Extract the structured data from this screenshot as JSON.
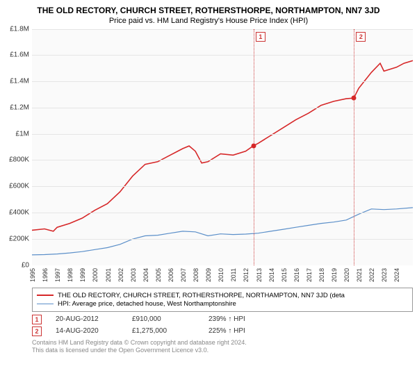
{
  "header": {
    "title": "THE OLD RECTORY, CHURCH STREET, ROTHERSTHORPE, NORTHAMPTON, NN7 3JD",
    "subtitle": "Price paid vs. HM Land Registry's House Price Index (HPI)"
  },
  "chart": {
    "type": "line",
    "background_color": "#fafafa",
    "grid_color": "#e5e5e5",
    "text_color": "#333333",
    "font_family": "Arial",
    "label_fontsize": 10,
    "x": {
      "min": 1995.0,
      "max": 2025.3,
      "ticks": [
        "1995",
        "1996",
        "1997",
        "1998",
        "1999",
        "2000",
        "2001",
        "2002",
        "2003",
        "2004",
        "2005",
        "2006",
        "2007",
        "2008",
        "2009",
        "2010",
        "2011",
        "2012",
        "2013",
        "2014",
        "2015",
        "2016",
        "2017",
        "2018",
        "2019",
        "2020",
        "2021",
        "2022",
        "2023",
        "2024"
      ],
      "label_rotate_deg": -90
    },
    "y": {
      "min": 0,
      "max": 1800000,
      "ticks": [
        0,
        200000,
        400000,
        600000,
        800000,
        1000000,
        1200000,
        1400000,
        1600000,
        1800000
      ],
      "tick_labels": [
        "£0",
        "£200K",
        "£400K",
        "£600K",
        "£800K",
        "£1M",
        "£1.2M",
        "£1.4M",
        "£1.6M",
        "£1.8M"
      ]
    },
    "series": [
      {
        "name": "HPI: Average price, detached house, West Northamptonshire",
        "color": "#5b8fc9",
        "line_width": 1.2,
        "points": [
          [
            1995.0,
            80000
          ],
          [
            1996.0,
            82000
          ],
          [
            1997.0,
            87000
          ],
          [
            1998.0,
            95000
          ],
          [
            1999.0,
            105000
          ],
          [
            2000.0,
            120000
          ],
          [
            2001.0,
            135000
          ],
          [
            2002.0,
            160000
          ],
          [
            2003.0,
            200000
          ],
          [
            2004.0,
            225000
          ],
          [
            2005.0,
            230000
          ],
          [
            2006.0,
            245000
          ],
          [
            2007.0,
            260000
          ],
          [
            2008.0,
            255000
          ],
          [
            2009.0,
            225000
          ],
          [
            2010.0,
            240000
          ],
          [
            2011.0,
            235000
          ],
          [
            2012.0,
            238000
          ],
          [
            2013.0,
            245000
          ],
          [
            2014.0,
            260000
          ],
          [
            2015.0,
            275000
          ],
          [
            2016.0,
            290000
          ],
          [
            2017.0,
            305000
          ],
          [
            2018.0,
            320000
          ],
          [
            2019.0,
            330000
          ],
          [
            2020.0,
            345000
          ],
          [
            2021.0,
            390000
          ],
          [
            2022.0,
            430000
          ],
          [
            2023.0,
            425000
          ],
          [
            2024.0,
            430000
          ],
          [
            2025.3,
            440000
          ]
        ]
      },
      {
        "name": "THE OLD RECTORY, CHURCH STREET, ROTHERSTHORPE, NORTHAMPTON, NN7 3JD (deta",
        "color": "#d62728",
        "line_width": 1.6,
        "points": [
          [
            1995.0,
            268000
          ],
          [
            1996.0,
            278000
          ],
          [
            1996.7,
            260000
          ],
          [
            1997.0,
            290000
          ],
          [
            1998.0,
            320000
          ],
          [
            1999.0,
            360000
          ],
          [
            2000.0,
            420000
          ],
          [
            2001.0,
            470000
          ],
          [
            2002.0,
            560000
          ],
          [
            2003.0,
            680000
          ],
          [
            2004.0,
            770000
          ],
          [
            2005.0,
            790000
          ],
          [
            2006.0,
            840000
          ],
          [
            2007.0,
            890000
          ],
          [
            2007.5,
            910000
          ],
          [
            2008.0,
            870000
          ],
          [
            2008.5,
            780000
          ],
          [
            2009.0,
            790000
          ],
          [
            2010.0,
            850000
          ],
          [
            2011.0,
            840000
          ],
          [
            2012.0,
            870000
          ],
          [
            2012.6,
            910000
          ],
          [
            2013.0,
            930000
          ],
          [
            2014.0,
            990000
          ],
          [
            2015.0,
            1050000
          ],
          [
            2016.0,
            1110000
          ],
          [
            2017.0,
            1160000
          ],
          [
            2018.0,
            1220000
          ],
          [
            2019.0,
            1250000
          ],
          [
            2020.0,
            1270000
          ],
          [
            2020.6,
            1275000
          ],
          [
            2021.0,
            1350000
          ],
          [
            2022.0,
            1470000
          ],
          [
            2022.7,
            1540000
          ],
          [
            2023.0,
            1480000
          ],
          [
            2024.0,
            1510000
          ],
          [
            2024.6,
            1540000
          ],
          [
            2025.3,
            1560000
          ]
        ]
      }
    ],
    "transactions": [
      {
        "n": "1",
        "x": 2012.63,
        "date": "20-AUG-2012",
        "price_val": 910000,
        "price": "£910,000",
        "pct": "239% ↑ HPI",
        "vline_color": "#d04040",
        "dot_color": "#d62728"
      },
      {
        "n": "2",
        "x": 2020.62,
        "date": "14-AUG-2020",
        "price_val": 1275000,
        "price": "£1,275,000",
        "pct": "225% ↑ HPI",
        "vline_color": "#d04040",
        "dot_color": "#d62728"
      }
    ]
  },
  "legend": {
    "border_color": "#999999",
    "items": [
      {
        "color": "#d62728",
        "width": 2,
        "label": "THE OLD RECTORY, CHURCH STREET, ROTHERSTHORPE, NORTHAMPTON, NN7 3JD (deta"
      },
      {
        "color": "#5b8fc9",
        "width": 1.2,
        "label": "HPI: Average price, detached house, West Northamptonshire"
      }
    ]
  },
  "footer": {
    "line1": "Contains HM Land Registry data © Crown copyright and database right 2024.",
    "line2": "This data is licensed under the Open Government Licence v3.0."
  }
}
